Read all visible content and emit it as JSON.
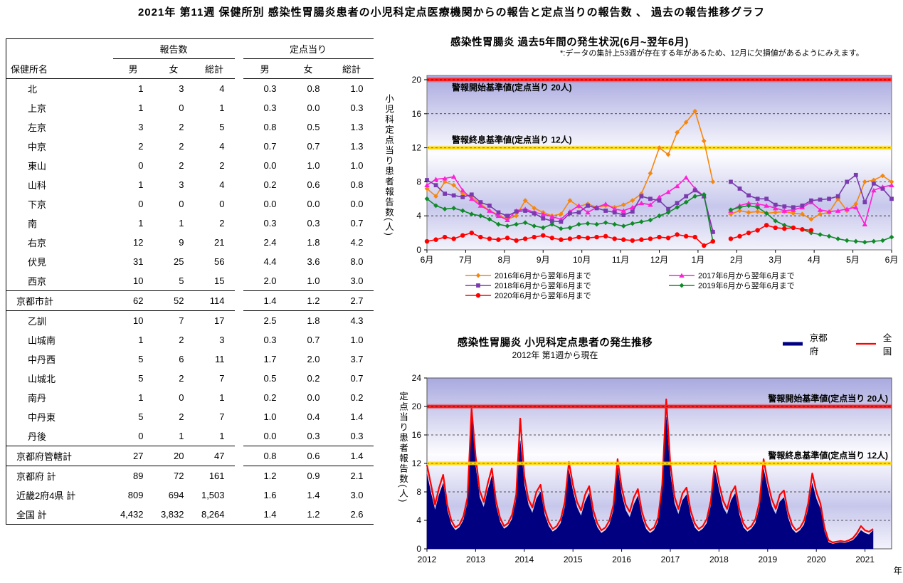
{
  "page_title": "2021年 第11週 保健所別 感染性胃腸炎患者の小児科定点医療機関からの報告と定点当りの報告数 、 過去の報告推移グラフ",
  "table": {
    "name_header": "保健所名",
    "group_headers": [
      "報告数",
      "定点当り"
    ],
    "sub_headers": [
      "男",
      "女",
      "総計",
      "男",
      "女",
      "総計"
    ],
    "rows": [
      {
        "name": "北",
        "indent": 1,
        "sec": false,
        "values": [
          "1",
          "3",
          "4",
          "0.3",
          "0.8",
          "1.0"
        ]
      },
      {
        "name": "上京",
        "indent": 1,
        "sec": false,
        "values": [
          "1",
          "0",
          "1",
          "0.3",
          "0.0",
          "0.3"
        ]
      },
      {
        "name": "左京",
        "indent": 1,
        "sec": false,
        "values": [
          "3",
          "2",
          "5",
          "0.8",
          "0.5",
          "1.3"
        ]
      },
      {
        "name": "中京",
        "indent": 1,
        "sec": false,
        "values": [
          "2",
          "2",
          "4",
          "0.7",
          "0.7",
          "1.3"
        ]
      },
      {
        "name": "東山",
        "indent": 1,
        "sec": false,
        "values": [
          "0",
          "2",
          "2",
          "0.0",
          "1.0",
          "1.0"
        ]
      },
      {
        "name": "山科",
        "indent": 1,
        "sec": false,
        "values": [
          "1",
          "3",
          "4",
          "0.2",
          "0.6",
          "0.8"
        ]
      },
      {
        "name": "下京",
        "indent": 1,
        "sec": false,
        "values": [
          "0",
          "0",
          "0",
          "0.0",
          "0.0",
          "0.0"
        ]
      },
      {
        "name": "南",
        "indent": 1,
        "sec": false,
        "values": [
          "1",
          "1",
          "2",
          "0.3",
          "0.3",
          "0.7"
        ]
      },
      {
        "name": "右京",
        "indent": 1,
        "sec": false,
        "values": [
          "12",
          "9",
          "21",
          "2.4",
          "1.8",
          "4.2"
        ]
      },
      {
        "name": "伏見",
        "indent": 1,
        "sec": false,
        "values": [
          "31",
          "25",
          "56",
          "4.4",
          "3.6",
          "8.0"
        ]
      },
      {
        "name": "西京",
        "indent": 1,
        "sec": true,
        "values": [
          "10",
          "5",
          "15",
          "2.0",
          "1.0",
          "3.0"
        ]
      },
      {
        "name": "京都市計",
        "indent": 0,
        "sec": true,
        "values": [
          "62",
          "52",
          "114",
          "1.4",
          "1.2",
          "2.7"
        ]
      },
      {
        "name": "乙訓",
        "indent": 1,
        "sec": false,
        "values": [
          "10",
          "7",
          "17",
          "2.5",
          "1.8",
          "4.3"
        ]
      },
      {
        "name": "山城南",
        "indent": 1,
        "sec": false,
        "values": [
          "1",
          "2",
          "3",
          "0.3",
          "0.7",
          "1.0"
        ]
      },
      {
        "name": "中丹西",
        "indent": 1,
        "sec": false,
        "values": [
          "5",
          "6",
          "11",
          "1.7",
          "2.0",
          "3.7"
        ]
      },
      {
        "name": "山城北",
        "indent": 1,
        "sec": false,
        "values": [
          "5",
          "2",
          "7",
          "0.5",
          "0.2",
          "0.7"
        ]
      },
      {
        "name": "南丹",
        "indent": 1,
        "sec": false,
        "values": [
          "1",
          "0",
          "1",
          "0.2",
          "0.0",
          "0.2"
        ]
      },
      {
        "name": "中丹東",
        "indent": 1,
        "sec": false,
        "values": [
          "5",
          "2",
          "7",
          "1.0",
          "0.4",
          "1.4"
        ]
      },
      {
        "name": "丹後",
        "indent": 1,
        "sec": true,
        "values": [
          "0",
          "1",
          "1",
          "0.0",
          "0.3",
          "0.3"
        ]
      },
      {
        "name": "京都府管轄計",
        "indent": 0,
        "sec": true,
        "values": [
          "27",
          "20",
          "47",
          "0.8",
          "0.6",
          "1.4"
        ]
      },
      {
        "name": "京都府  計",
        "indent": 0,
        "sec": false,
        "values": [
          "89",
          "72",
          "161",
          "1.2",
          "0.9",
          "2.1"
        ]
      },
      {
        "name": "近畿2府4県  計",
        "indent": 0,
        "sec": false,
        "values": [
          "809",
          "694",
          "1,503",
          "1.6",
          "1.4",
          "3.0"
        ]
      },
      {
        "name": "全国  計",
        "indent": 0,
        "sec": false,
        "last": true,
        "values": [
          "4,432",
          "3,832",
          "8,264",
          "1.4",
          "1.2",
          "2.6"
        ]
      }
    ]
  },
  "chart_data": [
    {
      "type": "line",
      "title": "感染性胃腸炎 過去5年間の発生状況(6月~翌年6月)",
      "note": "*:データの集計上53週が存在する年があるため、12月に欠損値があるようにみえます。",
      "ylabel": "小児科定点当り患者報告数(人)",
      "xlabel": "",
      "ylim": [
        0,
        20.5
      ],
      "y_ticks": [
        0,
        4,
        8,
        12,
        16,
        20
      ],
      "grid_values": [
        4,
        8,
        16
      ],
      "x_labels": [
        "6月",
        "7月",
        "8月",
        "9月",
        "10月",
        "11月",
        "12月",
        "1月",
        "2月",
        "3月",
        "4月",
        "5月",
        "6月"
      ],
      "legend_position": "bottom",
      "alert_lines": [
        {
          "value": 20,
          "label": "警報開始基準値(定点当り 20人)",
          "color": "#FF1E1E",
          "label_side": "left",
          "label_offset": "below"
        },
        {
          "value": 12,
          "label": "警報終息基準値(定点当り 12人)",
          "color": "#FFD700",
          "label_side": "left",
          "label_offset": "above"
        }
      ],
      "series": [
        {
          "name": "2016年6月から翌年6月まで",
          "color": "#F5870F",
          "marker": "diamond",
          "values": [
            7.2,
            6.3,
            8.0,
            7.6,
            6.6,
            6.2,
            5.4,
            4.6,
            4.1,
            3.6,
            4.0,
            5.8,
            4.9,
            4.4,
            4.0,
            4.2,
            5.8,
            5.1,
            5.4,
            5.0,
            5.2,
            5.0,
            5.3,
            5.8,
            6.6,
            9.0,
            12.0,
            11.2,
            13.8,
            15.0,
            16.3,
            12.8,
            8.0,
            null,
            4.2,
            4.6,
            4.4,
            4.5,
            4.3,
            4.4,
            4.5,
            4.3,
            4.2,
            3.6,
            4.2,
            4.4,
            6.0,
            4.6,
            5.4,
            8.0,
            8.2,
            8.7,
            8.0
          ]
        },
        {
          "name": "2017年6月から翌年6月まで",
          "color": "#FF1FD4",
          "marker": "triangle",
          "values": [
            7.6,
            8.3,
            8.4,
            8.6,
            7.0,
            6.0,
            5.2,
            4.6,
            4.0,
            3.5,
            4.6,
            4.8,
            4.4,
            4.2,
            3.9,
            3.6,
            4.5,
            5.2,
            4.4,
            5.0,
            5.4,
            4.8,
            4.6,
            5.0,
            5.5,
            5.3,
            6.2,
            6.8,
            7.5,
            8.5,
            7.2,
            6.3,
            2.2,
            null,
            4.6,
            5.2,
            5.5,
            5.4,
            5.2,
            4.9,
            4.6,
            4.7,
            5.0,
            5.6,
            4.7,
            4.5,
            4.6,
            4.8,
            5.0,
            3.0,
            7.0,
            7.4,
            7.6
          ]
        },
        {
          "name": "2018年6月から翌年6月まで",
          "color": "#7A3BAF",
          "marker": "square",
          "values": [
            8.2,
            7.6,
            6.6,
            6.4,
            6.2,
            6.5,
            5.6,
            5.2,
            4.4,
            4.0,
            4.5,
            4.6,
            4.3,
            3.7,
            3.4,
            3.3,
            4.3,
            4.4,
            5.2,
            4.9,
            4.6,
            4.4,
            4.1,
            4.5,
            6.3,
            6.0,
            5.8,
            4.8,
            5.5,
            6.3,
            7.0,
            6.3,
            2.1,
            null,
            8.0,
            7.2,
            6.4,
            6.0,
            6.0,
            5.3,
            5.1,
            5.0,
            5.2,
            5.8,
            5.9,
            6.0,
            6.3,
            8.0,
            8.8,
            5.6,
            7.8,
            7.2,
            6.0
          ]
        },
        {
          "name": "2019年6月から翌年6月まで",
          "color": "#0E8A28",
          "marker": "diamond",
          "values": [
            6.0,
            5.2,
            4.8,
            4.9,
            4.6,
            4.2,
            4.0,
            3.6,
            3.0,
            2.8,
            3.0,
            3.2,
            2.8,
            2.6,
            3.0,
            2.5,
            2.6,
            3.0,
            3.1,
            3.0,
            3.2,
            3.0,
            2.8,
            3.1,
            3.3,
            3.5,
            4.0,
            4.4,
            5.0,
            5.6,
            6.3,
            6.5,
            1.0,
            null,
            4.7,
            5.0,
            5.2,
            5.0,
            4.3,
            3.4,
            2.9,
            2.6,
            2.4,
            2.0,
            1.8,
            1.6,
            1.3,
            1.1,
            1.0,
            0.9,
            1.0,
            1.1,
            1.5
          ]
        },
        {
          "name": "2020年6月から翌年6月まで",
          "color": "#FF0000",
          "marker": "circle",
          "values": [
            1.0,
            1.2,
            1.5,
            1.3,
            1.7,
            2.0,
            1.5,
            1.3,
            1.2,
            1.4,
            1.1,
            1.3,
            1.5,
            1.7,
            1.4,
            1.2,
            1.3,
            1.5,
            1.4,
            1.5,
            1.6,
            1.3,
            1.2,
            1.1,
            1.2,
            1.3,
            1.5,
            1.4,
            1.8,
            1.6,
            1.5,
            0.5,
            1.0,
            null,
            1.3,
            1.6,
            2.0,
            2.3,
            2.9,
            2.6,
            2.5,
            2.6,
            2.4,
            2.3,
            null,
            null,
            null,
            null,
            null,
            null,
            null,
            null,
            null
          ]
        }
      ]
    },
    {
      "type": "area",
      "title": "感染性胃腸炎 小児科定点患者の発生推移",
      "subtitle": "2012年 第1週から現在",
      "ylabel": "定点当り患者報告数(人)",
      "xlabel": "年",
      "ylim": [
        0,
        24
      ],
      "y_ticks": [
        0,
        4,
        8,
        12,
        16,
        20,
        24
      ],
      "grid_values": [
        4,
        8,
        16
      ],
      "x_labels": [
        "2012",
        "2013",
        "2014",
        "2015",
        "2016",
        "2017",
        "2018",
        "2019",
        "2020",
        "2021"
      ],
      "legend_position": "top-right",
      "alert_lines": [
        {
          "value": 20,
          "label": "警報開始基準値(定点当り 20人)",
          "color": "#FF1E1E",
          "label_side": "right",
          "label_offset": "above"
        },
        {
          "value": 12,
          "label": "警報終息基準値(定点当り 12人)",
          "color": "#FFD700",
          "label_side": "right",
          "label_offset": "above"
        }
      ],
      "legend": [
        {
          "label": "京都府",
          "color": "#000080",
          "type": "area"
        },
        {
          "label": "全  国",
          "color": "#FF0000",
          "type": "line"
        }
      ],
      "x_start_year": 2012,
      "series": [
        {
          "name": "京都府",
          "color": "#000080",
          "role": "area",
          "values": [
            10.5,
            7.8,
            5.4,
            7.6,
            9.2,
            5.4,
            3.4,
            2.6,
            3.0,
            4.0,
            6.4,
            19.3,
            11.5,
            7.2,
            5.8,
            8.2,
            10.2,
            6.0,
            3.8,
            2.8,
            3.2,
            4.2,
            6.8,
            15.2,
            9.0,
            6.2,
            5.0,
            7.0,
            8.0,
            4.8,
            3.2,
            2.4,
            2.8,
            3.6,
            5.8,
            11.0,
            8.0,
            5.8,
            4.6,
            6.6,
            7.8,
            4.6,
            3.0,
            2.2,
            2.6,
            3.4,
            5.4,
            11.4,
            7.6,
            5.4,
            4.4,
            6.2,
            7.4,
            4.4,
            2.8,
            2.2,
            2.6,
            3.8,
            8.0,
            18.5,
            10.5,
            6.4,
            4.8,
            6.8,
            7.6,
            4.6,
            3.0,
            2.4,
            2.8,
            3.6,
            6.0,
            11.0,
            8.2,
            5.8,
            4.8,
            6.8,
            7.8,
            4.8,
            3.0,
            2.4,
            2.8,
            3.6,
            5.8,
            11.2,
            8.4,
            6.0,
            4.8,
            6.6,
            7.2,
            4.4,
            2.8,
            2.2,
            2.6,
            3.4,
            5.6,
            9.2,
            7.0,
            5.6,
            2.4,
            0.9,
            0.7,
            0.8,
            0.9,
            0.8,
            1.0,
            1.2,
            1.8,
            2.6,
            2.2,
            2.0,
            2.6
          ]
        },
        {
          "name": "全  国",
          "color": "#FF0000",
          "role": "line",
          "values": [
            11.8,
            9.0,
            6.2,
            8.6,
            10.4,
            6.2,
            4.0,
            3.0,
            3.4,
            4.6,
            7.2,
            19.7,
            13.0,
            8.2,
            6.6,
            9.2,
            11.3,
            6.8,
            4.4,
            3.2,
            3.6,
            4.8,
            7.6,
            18.3,
            10.2,
            7.0,
            5.8,
            8.0,
            9.0,
            5.6,
            3.8,
            2.8,
            3.2,
            4.2,
            6.6,
            12.2,
            9.0,
            6.6,
            5.4,
            7.6,
            8.8,
            5.4,
            3.6,
            2.6,
            3.0,
            4.0,
            6.2,
            12.6,
            8.6,
            6.2,
            5.2,
            7.2,
            8.4,
            5.2,
            3.4,
            2.6,
            3.0,
            4.4,
            9.0,
            21.0,
            12.0,
            7.4,
            5.6,
            7.8,
            8.6,
            5.4,
            3.6,
            2.8,
            3.2,
            4.2,
            6.8,
            12.3,
            9.2,
            6.8,
            5.6,
            7.8,
            8.8,
            5.6,
            3.6,
            2.8,
            3.2,
            4.2,
            6.6,
            12.6,
            9.4,
            7.0,
            5.6,
            7.6,
            8.2,
            5.2,
            3.4,
            2.6,
            3.0,
            4.0,
            6.4,
            10.6,
            8.0,
            6.4,
            3.0,
            1.2,
            0.9,
            1.0,
            1.1,
            1.0,
            1.2,
            1.5,
            2.2,
            3.2,
            2.6,
            2.4,
            2.8
          ]
        }
      ]
    }
  ]
}
